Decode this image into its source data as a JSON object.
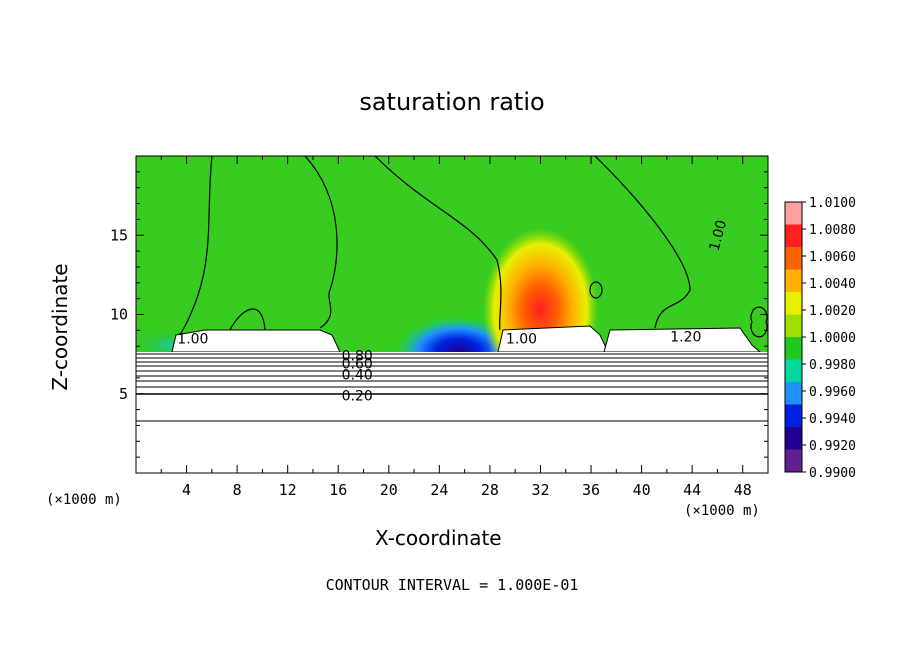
{
  "chart_data": {
    "type": "heatmap",
    "title": "saturation ratio",
    "xlabel": "X-coordinate",
    "ylabel": "Z-coordinate",
    "x_unit": "(×1000 m)",
    "z_unit": "(×1000 m)",
    "xlim": [
      0,
      50
    ],
    "ylim": [
      0,
      20
    ],
    "x_ticks": [
      "4",
      "8",
      "12",
      "16",
      "20",
      "24",
      "28",
      "32",
      "36",
      "40",
      "44",
      "48"
    ],
    "y_ticks": [
      "5",
      "10",
      "15"
    ],
    "footer": "CONTOUR INTERVAL = 1.000E-01",
    "colorbar": {
      "min": 0.99,
      "max": 1.01,
      "labels": [
        "1.0100",
        "1.0080",
        "1.0060",
        "1.0040",
        "1.0020",
        "1.0000",
        "0.9980",
        "0.9960",
        "0.9940",
        "0.9920",
        "0.9900"
      ],
      "colors": [
        "#ffa0a0",
        "#ff2020",
        "#ff6000",
        "#ffb000",
        "#e8f000",
        "#a0e000",
        "#20c820",
        "#00d8a0",
        "#2090ff",
        "#0020e0",
        "#200090",
        "#602090"
      ]
    },
    "contour_labels": [
      {
        "text": "1.00",
        "x": 46.0,
        "y": 15.0
      },
      {
        "text": "1.00",
        "x": 4.5,
        "y": 8.5
      },
      {
        "text": "1.00",
        "x": 30.5,
        "y": 8.5
      },
      {
        "text": "1.20",
        "x": 43.5,
        "y": 8.6
      },
      {
        "text": "0.80",
        "x": 17.5,
        "y": 7.4
      },
      {
        "text": "0.60",
        "x": 17.5,
        "y": 6.9
      },
      {
        "text": "0.40",
        "x": 17.5,
        "y": 6.2
      },
      {
        "text": "0.20",
        "x": 17.5,
        "y": 4.9
      }
    ],
    "features": [
      {
        "name": "dry-zone",
        "x_center": 25.5,
        "z_center": 8.2,
        "value": 0.991
      },
      {
        "name": "supersaturated-zone",
        "x_center": 32.0,
        "z_center": 10.3,
        "value": 1.008
      }
    ]
  }
}
